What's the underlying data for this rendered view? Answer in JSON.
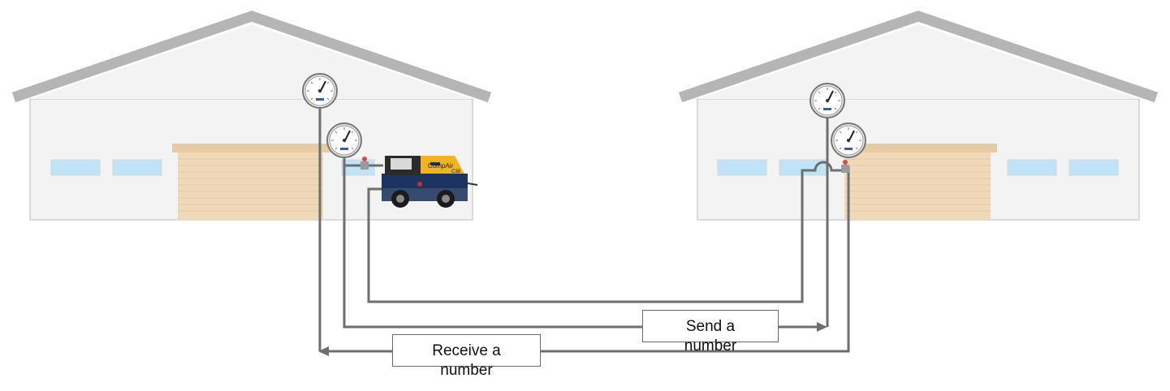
{
  "diagram": {
    "send_label": "Send a\nnumber",
    "receive_label": "Receive a\nnumber",
    "compressor_brand": "CompAir",
    "compressor_model": "C38",
    "colors": {
      "building_wall": "#f3f3f3",
      "building_outline": "#d0d0d0",
      "roof": "#b5b5b5",
      "window": "#bfe3f7",
      "garage_door": "#f0d9b9",
      "garage_lintel": "#e8cba4",
      "pipe": "#6e6e6e",
      "compressor_body": "#f2b322",
      "compressor_chassis": "#1d3461"
    },
    "icons": [
      "pressure-gauge-icon",
      "compressor-icon",
      "valve-icon",
      "arrow-head-icon"
    ]
  }
}
